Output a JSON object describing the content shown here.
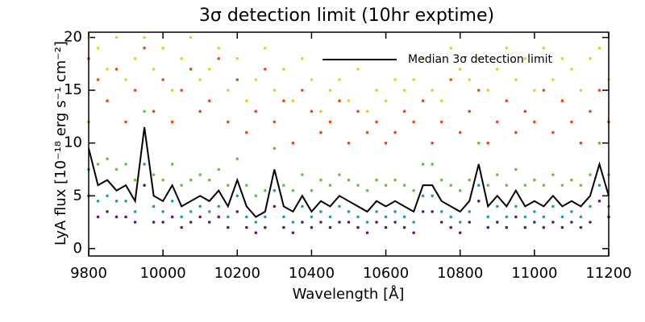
{
  "chart_data": {
    "type": "scatter",
    "title": "3σ detection limit (10hr exptime)",
    "xlabel": "Wavelength [Å]",
    "ylabel": "LyA flux [10⁻¹⁸ erg s⁻¹ cm⁻²]",
    "legend": "upper right",
    "x": [
      9800,
      9825,
      9850,
      9875,
      9900,
      9925,
      9950,
      9975,
      10000,
      10025,
      10050,
      10075,
      10100,
      10125,
      10150,
      10175,
      10200,
      10225,
      10250,
      10275,
      10300,
      10325,
      10350,
      10375,
      10400,
      10425,
      10450,
      10475,
      10500,
      10525,
      10550,
      10575,
      10600,
      10625,
      10650,
      10675,
      10700,
      10725,
      10750,
      10775,
      10800,
      10825,
      10850,
      10875,
      10900,
      10925,
      10950,
      10975,
      11000,
      11025,
      11050,
      11075,
      11100,
      11125,
      11150,
      11175,
      11200
    ],
    "series": [
      {
        "color": "#d8d820",
        "values": [
          20,
          19,
          17,
          20,
          16,
          18,
          20,
          17,
          19,
          15,
          18,
          20,
          16,
          17,
          19,
          15,
          18,
          14,
          16,
          19,
          15,
          17,
          14,
          18,
          16,
          13,
          15,
          16,
          14,
          17,
          13,
          15,
          14,
          16,
          15,
          16,
          18,
          15,
          14,
          19,
          17,
          16,
          18,
          15,
          17,
          19,
          16,
          18,
          15,
          19,
          16,
          18,
          17,
          15,
          18,
          19,
          16
        ]
      },
      {
        "color": "#e84a10",
        "values": [
          18,
          16,
          14,
          17,
          12,
          15,
          19,
          13,
          16,
          12,
          15,
          17,
          13,
          14,
          18,
          12,
          16,
          11,
          13,
          17,
          12,
          14,
          10,
          15,
          13,
          11,
          12,
          14,
          10,
          13,
          11,
          12,
          10,
          11,
          13,
          12,
          14,
          10,
          12,
          16,
          11,
          13,
          15,
          10,
          12,
          14,
          11,
          13,
          12,
          15,
          11,
          14,
          12,
          10,
          13,
          15,
          12
        ]
      },
      {
        "color": "#6cc040",
        "values": [
          12,
          8,
          8.5,
          7.5,
          8,
          6.5,
          13,
          7,
          6.5,
          8,
          6,
          6.5,
          7,
          6.5,
          7.5,
          6,
          8.5,
          6,
          5,
          5.5,
          9.5,
          6,
          5.5,
          7,
          5.5,
          6.5,
          6,
          7,
          6.5,
          6,
          5.5,
          6.5,
          6,
          6.5,
          6,
          5.5,
          8,
          8,
          6.5,
          6,
          5.5,
          6.5,
          10,
          6,
          7,
          6,
          7.5,
          6,
          6.5,
          6,
          7,
          6,
          6.5,
          6,
          7,
          10,
          7
        ]
      },
      {
        "color": "#1fa0a8",
        "values": [
          7.5,
          4.5,
          5,
          4.5,
          4.5,
          3.5,
          8,
          4,
          3.5,
          4.5,
          3,
          3.5,
          4,
          3.5,
          4,
          3,
          5,
          3,
          2.5,
          3,
          5.5,
          3,
          2.5,
          4,
          3,
          3.5,
          3,
          4,
          3.5,
          3,
          2.5,
          3.5,
          3,
          3.5,
          3,
          2.5,
          5,
          5,
          3.5,
          3,
          2.5,
          3.5,
          6,
          3,
          4,
          3,
          4,
          3,
          3.5,
          3,
          4,
          3,
          3.5,
          3,
          4,
          6,
          4
        ]
      },
      {
        "color": "#5a1a7a",
        "values": [
          5,
          3,
          3.5,
          3,
          3,
          2.5,
          6,
          2.5,
          2.5,
          3,
          2,
          2.5,
          3,
          2.5,
          3,
          2,
          3.5,
          2,
          1.5,
          2,
          4,
          2,
          1.5,
          2.5,
          2,
          2.5,
          2,
          2.5,
          2.5,
          2,
          1.5,
          2.5,
          2,
          2.5,
          2,
          1.5,
          3.5,
          3.5,
          2.5,
          2,
          1.5,
          2.5,
          4.5,
          2,
          2.5,
          2,
          3,
          2,
          2.5,
          2,
          2.5,
          2,
          2.5,
          2,
          2.5,
          4.5,
          3
        ]
      },
      {
        "name": "Median 3σ detection limit",
        "type": "line",
        "color": "#000000",
        "values": [
          9.5,
          6,
          6.5,
          5.5,
          6,
          4.5,
          11.5,
          5,
          4.5,
          6,
          4,
          4.5,
          5,
          4.5,
          5.5,
          4,
          6.5,
          4,
          3,
          3.5,
          7.5,
          4,
          3.5,
          5,
          3.5,
          4.5,
          4,
          5,
          4.5,
          4,
          3.5,
          4.5,
          4,
          4.5,
          4,
          3.5,
          6,
          6,
          4.5,
          4,
          3.5,
          4.5,
          8,
          4,
          5,
          4,
          5.5,
          4,
          4.5,
          4,
          5,
          4,
          4.5,
          4,
          5,
          8,
          5
        ]
      }
    ],
    "xlim": [
      9800,
      11200
    ],
    "xticks": [
      9800,
      10000,
      10200,
      10400,
      10600,
      10800,
      11000,
      11200
    ],
    "ylim": [
      -0.7,
      20.5
    ],
    "yticks": [
      0,
      5,
      10,
      15,
      20
    ]
  }
}
